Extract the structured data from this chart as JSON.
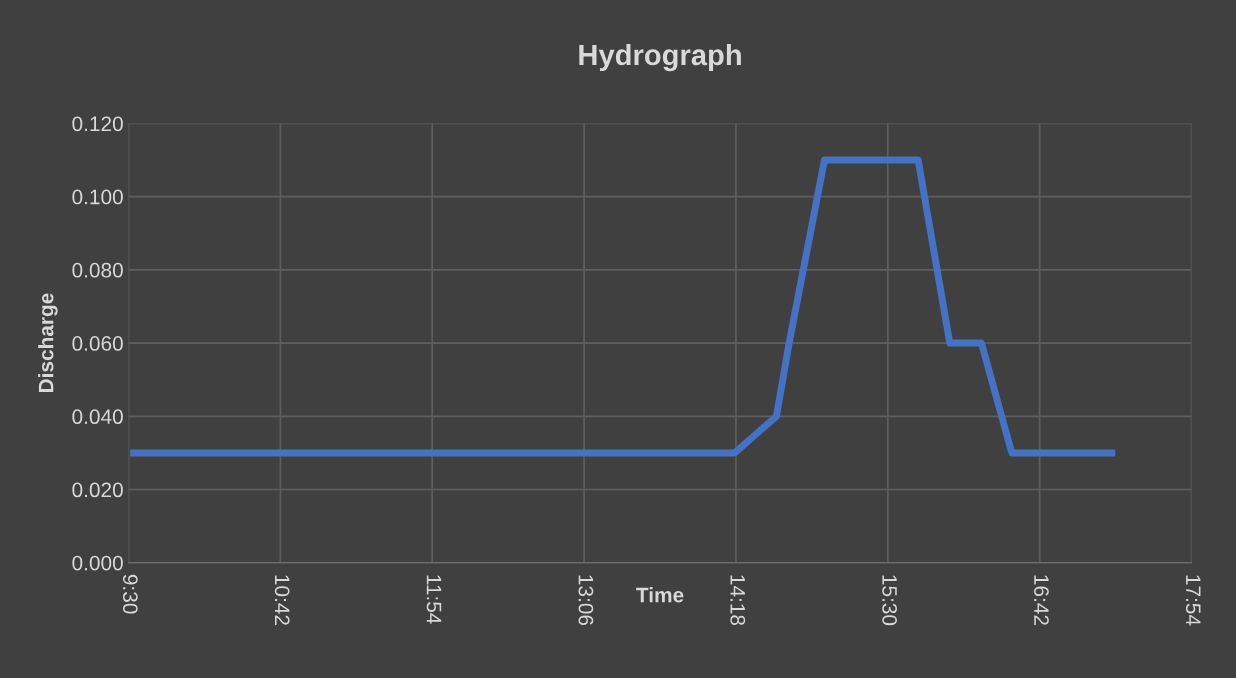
{
  "chart_data": {
    "type": "line",
    "title": "Hydrograph",
    "xlabel": "Time",
    "ylabel": "Discharge",
    "series": [
      {
        "color": "#4472c4",
        "x": [
          9.54,
          10.38,
          14.29,
          14.62,
          14.72,
          15.0,
          15.74,
          15.99,
          16.24,
          16.48,
          17.27
        ],
        "values": [
          0.03,
          0.03,
          0.03,
          0.04,
          0.06,
          0.11,
          0.11,
          0.06,
          0.06,
          0.03,
          0.03
        ]
      }
    ],
    "xlim": [
      9.5,
      17.9
    ],
    "ylim": [
      0,
      0.12
    ],
    "xticks": [
      {
        "value": 9.5,
        "label": "9:30"
      },
      {
        "value": 10.7,
        "label": "10:42"
      },
      {
        "value": 11.9,
        "label": "11:54"
      },
      {
        "value": 13.1,
        "label": "13:06"
      },
      {
        "value": 14.3,
        "label": "14:18"
      },
      {
        "value": 15.5,
        "label": "15:30"
      },
      {
        "value": 16.7,
        "label": "16:42"
      },
      {
        "value": 17.9,
        "label": "17:54"
      }
    ],
    "yticks": [
      {
        "value": 0,
        "label": "0.000"
      },
      {
        "value": 0.02,
        "label": "0.020"
      },
      {
        "value": 0.04,
        "label": "0.040"
      },
      {
        "value": 0.06,
        "label": "0.060"
      },
      {
        "value": 0.08,
        "label": "0.080"
      },
      {
        "value": 0.1,
        "label": "0.100"
      },
      {
        "value": 0.12,
        "label": "0.120"
      }
    ],
    "grid": true,
    "legend": false,
    "marker": "none",
    "line_style": "solid"
  }
}
